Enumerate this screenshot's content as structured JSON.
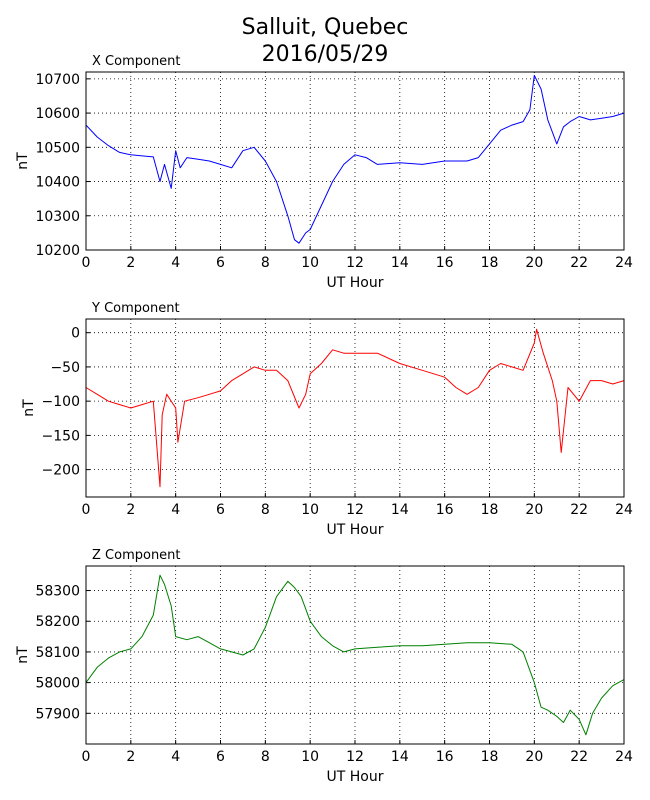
{
  "figure": {
    "title_line1": "Salluit, Quebec",
    "title_line2": "2016/05/29"
  },
  "chart_data": [
    {
      "type": "line",
      "title": "X Component",
      "xlabel": "UT Hour",
      "ylabel": "nT",
      "color": "#0000ff",
      "xlim": [
        0,
        24
      ],
      "ylim": [
        10200,
        10720
      ],
      "xticks": [
        0,
        2,
        4,
        6,
        8,
        10,
        12,
        14,
        16,
        18,
        20,
        22,
        24
      ],
      "yticks": [
        10200,
        10300,
        10400,
        10500,
        10600,
        10700
      ],
      "grid": true,
      "x": [
        0,
        0.5,
        1,
        1.5,
        2,
        2.5,
        3,
        3.3,
        3.5,
        3.8,
        4,
        4.2,
        4.5,
        5,
        5.5,
        6,
        6.5,
        7,
        7.5,
        8,
        8.5,
        9,
        9.3,
        9.5,
        9.8,
        10,
        10.5,
        11,
        11.5,
        12,
        12.5,
        13,
        14,
        15,
        16,
        17,
        17.5,
        18,
        18.5,
        19,
        19.5,
        19.8,
        20,
        20.3,
        20.6,
        21,
        21.3,
        21.6,
        22,
        22.5,
        23,
        23.5,
        24
      ],
      "y": [
        10565,
        10530,
        10505,
        10485,
        10478,
        10475,
        10472,
        10400,
        10450,
        10380,
        10490,
        10440,
        10470,
        10465,
        10460,
        10450,
        10440,
        10490,
        10500,
        10460,
        10400,
        10300,
        10230,
        10220,
        10250,
        10260,
        10330,
        10400,
        10450,
        10478,
        10470,
        10450,
        10455,
        10450,
        10460,
        10460,
        10470,
        10510,
        10550,
        10565,
        10575,
        10610,
        10710,
        10670,
        10580,
        10510,
        10560,
        10575,
        10590,
        10580,
        10585,
        10590,
        10600
      ]
    },
    {
      "type": "line",
      "title": "Y Component",
      "xlabel": "UT Hour",
      "ylabel": "nT",
      "color": "#ff0000",
      "xlim": [
        0,
        24
      ],
      "ylim": [
        -240,
        20
      ],
      "xticks": [
        0,
        2,
        4,
        6,
        8,
        10,
        12,
        14,
        16,
        18,
        20,
        22,
        24
      ],
      "yticks": [
        -200,
        -150,
        -100,
        -50,
        0
      ],
      "grid": true,
      "x": [
        0,
        0.5,
        1,
        1.5,
        2,
        2.5,
        3,
        3.3,
        3.4,
        3.6,
        4,
        4.1,
        4.4,
        5,
        5.5,
        6,
        6.5,
        7,
        7.5,
        8,
        8.5,
        9,
        9.5,
        9.8,
        10,
        10.5,
        11,
        11.5,
        12,
        13,
        14,
        15,
        16,
        16.5,
        17,
        17.5,
        18,
        18.5,
        19,
        19.5,
        20,
        20.1,
        20.4,
        20.8,
        21,
        21.2,
        21.5,
        22,
        22.5,
        23,
        23.5,
        24
      ],
      "y": [
        -80,
        -90,
        -100,
        -105,
        -110,
        -105,
        -100,
        -225,
        -120,
        -90,
        -110,
        -160,
        -100,
        -95,
        -90,
        -85,
        -70,
        -60,
        -50,
        -55,
        -55,
        -70,
        -110,
        -90,
        -60,
        -45,
        -25,
        -30,
        -30,
        -30,
        -45,
        -55,
        -65,
        -80,
        -90,
        -80,
        -55,
        -45,
        -50,
        -55,
        -15,
        5,
        -30,
        -70,
        -100,
        -175,
        -80,
        -100,
        -70,
        -70,
        -75,
        -70
      ]
    },
    {
      "type": "line",
      "title": "Z Component",
      "xlabel": "UT Hour",
      "ylabel": "nT",
      "color": "#008000",
      "xlim": [
        0,
        24
      ],
      "ylim": [
        57800,
        58380
      ],
      "xticks": [
        0,
        2,
        4,
        6,
        8,
        10,
        12,
        14,
        16,
        18,
        20,
        22,
        24
      ],
      "yticks": [
        57900,
        58000,
        58100,
        58200,
        58300
      ],
      "grid": true,
      "x": [
        0,
        0.5,
        1,
        1.5,
        2,
        2.5,
        3,
        3.3,
        3.5,
        3.8,
        4,
        4.5,
        5,
        5.5,
        6,
        6.5,
        7,
        7.5,
        8,
        8.5,
        9,
        9.3,
        9.6,
        10,
        10.5,
        11,
        11.5,
        12,
        13,
        14,
        15,
        16,
        17,
        18,
        19,
        19.5,
        20,
        20.3,
        20.6,
        21,
        21.3,
        21.6,
        22,
        22.3,
        22.6,
        23,
        23.5,
        24
      ],
      "y": [
        58000,
        58050,
        58080,
        58100,
        58110,
        58150,
        58220,
        58350,
        58320,
        58250,
        58150,
        58140,
        58150,
        58130,
        58110,
        58100,
        58090,
        58110,
        58180,
        58280,
        58330,
        58310,
        58280,
        58200,
        58150,
        58120,
        58100,
        58110,
        58115,
        58120,
        58120,
        58125,
        58130,
        58130,
        58125,
        58100,
        58000,
        57920,
        57910,
        57890,
        57870,
        57910,
        57880,
        57830,
        57900,
        57950,
        57990,
        58010
      ]
    }
  ]
}
